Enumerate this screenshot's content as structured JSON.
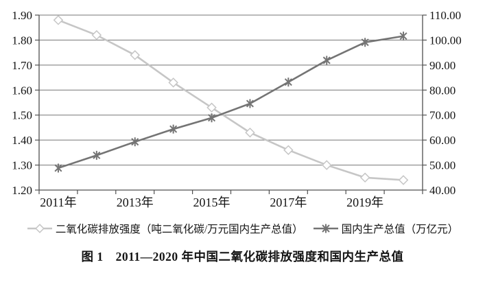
{
  "colors": {
    "co2_series": "#c6c6c6",
    "gdp_series": "#747474",
    "gridline": "#757575",
    "axis": "#4f4f4f",
    "text": "#141414"
  },
  "chart_data": {
    "type": "line",
    "categories": [
      "2011",
      "2012",
      "2013",
      "2014",
      "2015",
      "2016",
      "2017",
      "2018",
      "2019",
      "2020"
    ],
    "series": [
      {
        "name": "二氧化碳排放强度（吨二氧化碳/万元国内生产总值）",
        "axis": "left",
        "marker": "diamond",
        "values": [
          1.88,
          1.82,
          1.74,
          1.63,
          1.53,
          1.43,
          1.36,
          1.3,
          1.25,
          1.24
        ]
      },
      {
        "name": "国内生产总值（万亿元）",
        "axis": "right",
        "marker": "asterisk",
        "values": [
          48.8,
          53.9,
          59.3,
          64.4,
          68.9,
          74.6,
          83.2,
          91.9,
          99.1,
          101.6
        ]
      }
    ],
    "left_axis": {
      "min": 1.2,
      "max": 1.9,
      "step": 0.1,
      "tick_labels": [
        "1.90",
        "1.80",
        "1.70",
        "1.60",
        "1.50",
        "1.40",
        "1.30",
        "1.20"
      ]
    },
    "right_axis": {
      "min": 40,
      "max": 110,
      "step": 10,
      "tick_labels": [
        "110.00",
        "100.00",
        "90.00",
        "80.00",
        "70.00",
        "60.00",
        "50.00",
        "40.00"
      ]
    },
    "x_axis": {
      "tick_labels": [
        {
          "index": 0,
          "label": "2011年"
        },
        {
          "index": 2,
          "label": "2013年"
        },
        {
          "index": 4,
          "label": "2015年"
        },
        {
          "index": 6,
          "label": "2017年"
        },
        {
          "index": 8,
          "label": "2019年"
        }
      ]
    },
    "grid": true,
    "legend_position": "bottom",
    "title": "图 1　2011—2020 年中国二氧化碳排放强度和国内生产总值"
  },
  "legend": {
    "items": [
      {
        "label": "二氧化碳排放强度（吨二氧化碳/万元国内生产总值）",
        "marker": "diamond"
      },
      {
        "label": "国内生产总值（万亿元）",
        "marker": "asterisk"
      }
    ]
  },
  "caption": "图 1　2011—2020 年中国二氧化碳排放强度和国内生产总值"
}
